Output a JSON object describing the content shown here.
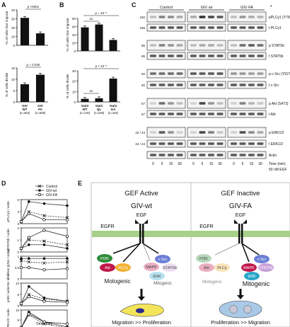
{
  "panels": {
    "A": {
      "letter": "A",
      "top": {
        "ylabel": "% of cells that migrate",
        "yticks": [
          "0",
          "10",
          "20",
          "30",
          "40"
        ],
        "pval": "p <0001",
        "values": [
          31,
          13.5
        ]
      },
      "bottom": {
        "ylabel": "% of cells divide",
        "yticks": [
          "0",
          "5",
          "10",
          "15"
        ],
        "pval": "p = 0.025",
        "values": [
          7.8,
          12
        ]
      },
      "groups": [
        {
          "line1": "GIV",
          "line2": "WT",
          "n": "(n=354)"
        },
        {
          "line1": "GIV",
          "line2": "FA",
          "n": "(n=508)"
        }
      ]
    },
    "B": {
      "letter": "B",
      "top": {
        "ylabel": "% of cells that migrate",
        "yticks": [
          "0",
          "20",
          "40",
          "60",
          "80"
        ],
        "pval": "p = 10⁻⁵",
        "ns": "ns",
        "values": [
          58,
          65,
          27
        ]
      },
      "bottom": {
        "ylabel": "% of cells divide",
        "yticks": [
          "0",
          "10",
          "20",
          "30"
        ],
        "pval": "p < 10⁻⁶",
        "ns": "ns",
        "values": [
          3,
          3.5,
          22.5
        ]
      },
      "groups": [
        {
          "line1": "Gαi3",
          "line2": "WT",
          "n": "(n=130)"
        },
        {
          "line1": "Gαi3",
          "line2": "QL",
          "n": "(n=209)"
        },
        {
          "line1": "Gαi3",
          "line2": "GA",
          "n": "(n=162)"
        }
      ]
    },
    "C": {
      "letter": "C",
      "groups": [
        "Control",
        "GIV wt",
        "GIV FA"
      ],
      "star": "*",
      "blots": [
        {
          "label": "pPLCγ1 (Y783)",
          "mw": "165"
        },
        {
          "label": "t PLCγ1",
          "mw": "165"
        },
        {
          "label": "p STAT5b",
          "mw": "95"
        },
        {
          "label": "t STAT5b",
          "mw": "95"
        },
        {
          "label": "p c-Src (Y527)",
          "mw": "60"
        },
        {
          "label": "t c-Src",
          "mw": "60"
        },
        {
          "label": "p Akt (S473)",
          "mw": "57"
        },
        {
          "label": "t Akt",
          "mw": "57"
        },
        {
          "label": "p ERK1/2",
          "mw": "42 / 44"
        },
        {
          "label": "t ERK1/2",
          "mw": "42 / 44"
        },
        {
          "label": "Actin",
          "mw": ""
        }
      ],
      "times": [
        "0",
        "5",
        "15",
        "30",
        "0",
        "5",
        "15",
        "30",
        "0",
        "5",
        "15",
        "30"
      ],
      "time_label": "Time (min)",
      "egf_label": "50 nM EGF"
    },
    "D": {
      "letter": "D",
      "legend": [
        "Control",
        "GIV-wt",
        "GIV-FA"
      ],
      "xlabel": "Time (min)",
      "xticks": [
        "0",
        "10",
        "20",
        "30"
      ],
      "rows": [
        {
          "ylabel": "pPLCγ1 / actin",
          "yticks": [
            "6",
            "3",
            "0"
          ]
        },
        {
          "ylabel": "pSTAT5b / actin",
          "yticks": [
            "2",
            "1",
            "0"
          ]
        },
        {
          "ylabel": "Src inhibition (pSrc / actin)",
          "yticks": [
            "1",
            "0.5",
            "0"
          ]
        },
        {
          "ylabel": "pAkt / actin",
          "yticks": [
            "10",
            "5",
            "0"
          ]
        },
        {
          "ylabel": "pERK1/2 / actin",
          "yticks": [
            "10",
            "5",
            "0"
          ]
        }
      ]
    },
    "E": {
      "letter": "E",
      "left": {
        "title": "GEF Active",
        "giv": "GIV-wt",
        "egf": "EGF",
        "egfr": "EGFR",
        "nodes": [
          "PI3K",
          "Akt",
          "PLCγ",
          "MAPK",
          "c-Src",
          "STAT5b",
          "ERK"
        ],
        "motogenic": "Motogenic",
        "mitogenic": "Mitogenic",
        "outcome": "Migration >> Proliferation"
      },
      "right": {
        "title": "GEF Inactive",
        "giv": "GIV-FA",
        "egf": "EGF",
        "egfr": "EGFR",
        "nodes": [
          "PI3K",
          "Akt",
          "PLCγ",
          "c-Src",
          "MAPK",
          "STAT5b",
          "ERK"
        ],
        "motogenic": "Motogenic",
        "mitogenic": "Mitogenic",
        "outcome": "Proliferation >> Migration"
      }
    }
  },
  "chart_data": [
    {
      "type": "bar",
      "categories": [
        "GIV WT",
        "GIV FA"
      ],
      "ylabel": "% of cells that migrate",
      "ylim": [
        0,
        40
      ],
      "values": [
        31,
        13.5
      ]
    },
    {
      "type": "bar",
      "categories": [
        "GIV WT",
        "GIV FA"
      ],
      "ylabel": "% of cells divide",
      "ylim": [
        0,
        15
      ],
      "values": [
        7.8,
        12
      ]
    },
    {
      "type": "bar",
      "categories": [
        "Gαi3 WT",
        "Gαi3 QL",
        "Gαi3 GA"
      ],
      "ylabel": "% of cells that migrate",
      "ylim": [
        0,
        80
      ],
      "values": [
        58,
        65,
        27
      ]
    },
    {
      "type": "bar",
      "categories": [
        "Gαi3 WT",
        "Gαi3 QL",
        "Gαi3 GA"
      ],
      "ylabel": "% of cells divide",
      "ylim": [
        0,
        30
      ],
      "values": [
        3,
        3.5,
        22.5
      ]
    },
    {
      "type": "line",
      "ylabel": "pPLCγ1 / actin",
      "xlabel": "Time (min)",
      "x": [
        0,
        5,
        15,
        30
      ],
      "ylim": [
        0,
        6
      ],
      "series": [
        {
          "name": "Control",
          "values": [
            0.5,
            3.0,
            2.0,
            1.5
          ]
        },
        {
          "name": "GIV-wt",
          "values": [
            0.5,
            5.5,
            5.0,
            4.5
          ]
        },
        {
          "name": "GIV-FA",
          "values": [
            0.5,
            2.5,
            1.0,
            1.0
          ]
        }
      ]
    },
    {
      "type": "line",
      "ylabel": "pSTAT5b / actin",
      "xlabel": "Time (min)",
      "x": [
        0,
        5,
        15,
        30
      ],
      "ylim": [
        0,
        2
      ],
      "series": [
        {
          "name": "Control",
          "values": [
            0.3,
            1.0,
            0.9,
            0.6
          ]
        },
        {
          "name": "GIV-wt",
          "values": [
            0.3,
            0.6,
            0.6,
            0.3
          ]
        },
        {
          "name": "GIV-FA",
          "values": [
            0.3,
            1.2,
            1.8,
            1.3
          ]
        }
      ]
    },
    {
      "type": "line",
      "ylabel": "Src inhibition (pSrc / actin)",
      "xlabel": "Time (min)",
      "x": [
        0,
        5,
        15,
        30
      ],
      "ylim": [
        0,
        1
      ],
      "series": [
        {
          "name": "Control",
          "values": [
            0.8,
            0.75,
            0.7,
            0.75
          ]
        },
        {
          "name": "GIV-wt",
          "values": [
            0.9,
            0.9,
            0.9,
            0.9
          ]
        },
        {
          "name": "GIV-FA",
          "values": [
            0.5,
            0.5,
            0.4,
            0.45
          ]
        }
      ]
    },
    {
      "type": "line",
      "ylabel": "pAkt / actin",
      "xlabel": "Time (min)",
      "x": [
        0,
        5,
        15,
        30
      ],
      "ylim": [
        0,
        10
      ],
      "series": [
        {
          "name": "Control",
          "values": [
            1,
            5,
            3,
            2
          ]
        },
        {
          "name": "GIV-wt",
          "values": [
            1,
            8.5,
            3.5,
            2
          ]
        },
        {
          "name": "GIV-FA",
          "values": [
            1,
            4,
            2,
            1.5
          ]
        }
      ]
    },
    {
      "type": "line",
      "ylabel": "pERK1/2 / actin",
      "xlabel": "Time (min)",
      "x": [
        0,
        5,
        15,
        30
      ],
      "ylim": [
        0,
        10
      ],
      "series": [
        {
          "name": "Control",
          "values": [
            1,
            7.5,
            3,
            1
          ]
        },
        {
          "name": "GIV-wt",
          "values": [
            1,
            9,
            4,
            1.5
          ]
        },
        {
          "name": "GIV-FA",
          "values": [
            1,
            8,
            4,
            3
          ]
        }
      ]
    }
  ],
  "colors": {
    "bar": "#111111",
    "membrane": "#a7d18a",
    "pi3k": "#2e8b3a",
    "akt": "#c0174a",
    "plc": "#f2b233",
    "mapk": "#c0174a",
    "csrc": "#6b7fd6",
    "stat": "#c9a0d8",
    "erk": "#2aa6c9",
    "cell_migrate": "#f3e55a",
    "cell_divide": "#a9c9e6"
  }
}
